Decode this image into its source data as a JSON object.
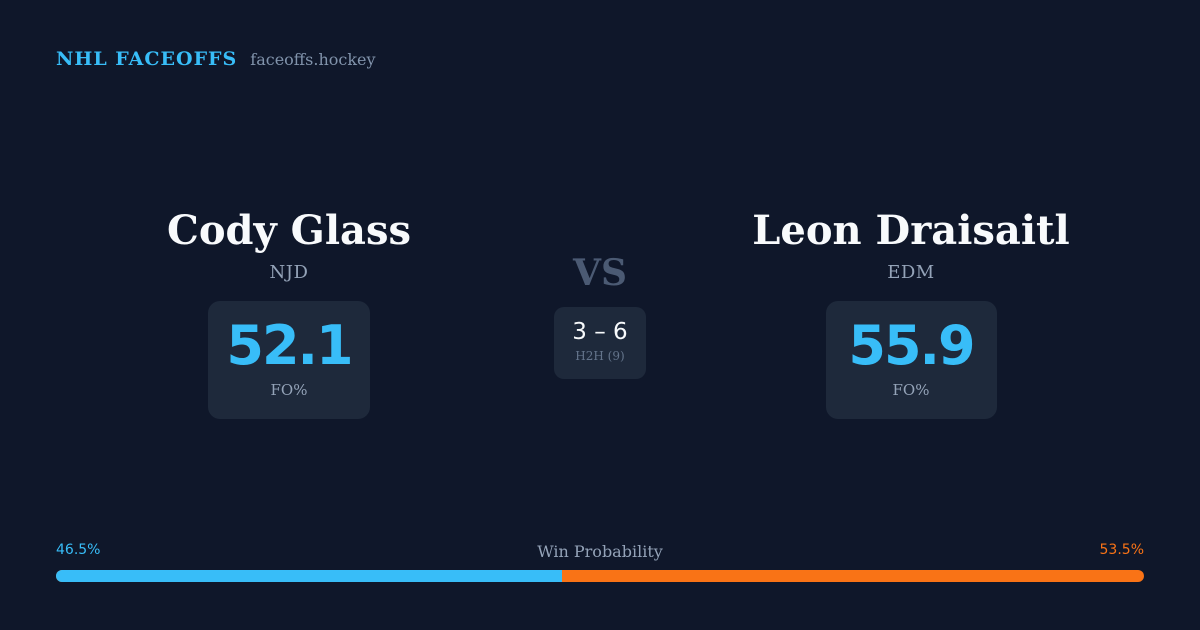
{
  "brand": {
    "name": "NHL FACEOFFS",
    "domain": "faceoffs.hockey"
  },
  "player_left": {
    "name": "Cody Glass",
    "team": "NJD",
    "fo_value": "52.1",
    "fo_label": "FO%"
  },
  "player_right": {
    "name": "Leon Draisaitl",
    "team": "EDM",
    "fo_value": "55.9",
    "fo_label": "FO%"
  },
  "versus": {
    "text": "VS",
    "h2h_score": "3 – 6",
    "h2h_label": "H2H (9)"
  },
  "win_probability": {
    "title": "Win Probability",
    "left_label": "46.5%",
    "right_label": "53.5%",
    "left_fraction": 0.465,
    "left_color": "#38bdf8",
    "right_color": "#f97316"
  }
}
